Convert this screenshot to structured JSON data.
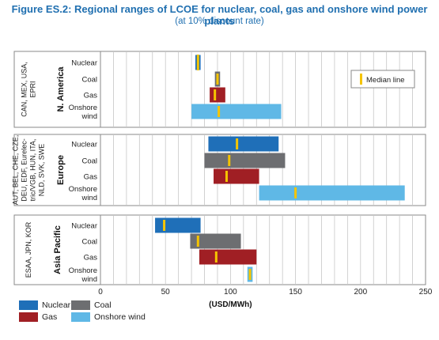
{
  "header": {
    "title": "Figure ES.2: Regional ranges of LCOE for nuclear, coal, gas and onshore wind power plants",
    "subtitle": "(at 10% discount rate)"
  },
  "colors": {
    "Nuclear": "#1f6fb8",
    "Coal": "#6d6e71",
    "Gas": "#a01f24",
    "Onshore wind": "#5fb8e6",
    "median": "#f5c400",
    "title": "#1f6fb0"
  },
  "chart_data": {
    "type": "range-bar",
    "title": "Figure ES.2: Regional ranges of LCOE for nuclear, coal, gas and onshore wind power plants",
    "subtitle": "(at 10% discount rate)",
    "xlabel": "(USD/MWh)",
    "xlim": [
      0,
      250
    ],
    "xticks": [
      "0",
      "50",
      "100",
      "150",
      "200",
      "250"
    ],
    "median_label": "Median line",
    "legend": [
      "Nuclear",
      "Coal",
      "Gas",
      "Onshore wind"
    ],
    "groups": [
      {
        "region": "N. America",
        "countries": [
          "CAN, MEX, USA,",
          "EPRI"
        ],
        "bars": [
          {
            "tech": "Nuclear",
            "label": [
              "Nuclear"
            ],
            "min": 73,
            "max": 77,
            "median": 75
          },
          {
            "tech": "Coal",
            "label": [
              "Coal"
            ],
            "min": 88,
            "max": 92,
            "median": 90
          },
          {
            "tech": "Gas",
            "label": [
              "Gas"
            ],
            "min": 84,
            "max": 96,
            "median": 88
          },
          {
            "tech": "Onshore wind",
            "label": [
              "Onshore",
              "wind"
            ],
            "min": 70,
            "max": 139,
            "median": 91
          }
        ]
      },
      {
        "region": "Europe",
        "countries": [
          "AUT, BEL, CHE, CZE,",
          "DEU, EDF, Eurelec-",
          "tric/VGB, HUN, ITA,",
          "NLD, SVK, SWE"
        ],
        "bars": [
          {
            "tech": "Nuclear",
            "label": [
              "Nuclear"
            ],
            "min": 83,
            "max": 137,
            "median": 105
          },
          {
            "tech": "Coal",
            "label": [
              "Coal"
            ],
            "min": 80,
            "max": 142,
            "median": 99
          },
          {
            "tech": "Gas",
            "label": [
              "Gas"
            ],
            "min": 87,
            "max": 122,
            "median": 97
          },
          {
            "tech": "Onshore wind",
            "label": [
              "Onshore",
              "wind"
            ],
            "min": 122,
            "max": 234,
            "median": 150
          }
        ]
      },
      {
        "region": "Asia Pacific",
        "countries": [
          "ESAA, JPN, KOR"
        ],
        "bars": [
          {
            "tech": "Nuclear",
            "label": [
              "Nuclear"
            ],
            "min": 42,
            "max": 77,
            "median": 49
          },
          {
            "tech": "Coal",
            "label": [
              "Coal"
            ],
            "min": 69,
            "max": 108,
            "median": 75
          },
          {
            "tech": "Gas",
            "label": [
              "Gas"
            ],
            "min": 76,
            "max": 120,
            "median": 89
          },
          {
            "tech": "Onshore wind",
            "label": [
              "Onshore",
              "wind"
            ],
            "min": 113,
            "max": 117,
            "median": 115
          }
        ]
      }
    ]
  }
}
